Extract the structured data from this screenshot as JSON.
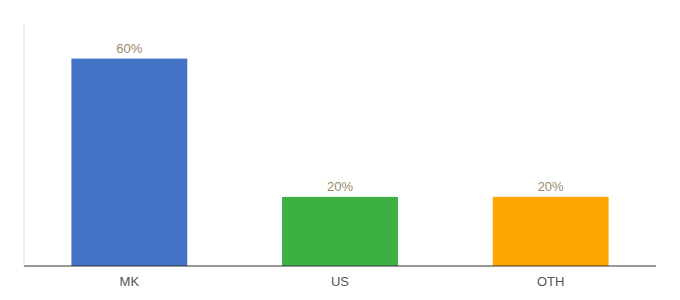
{
  "chart_data": {
    "type": "bar",
    "categories": [
      "MK",
      "US",
      "OTH"
    ],
    "values": [
      60,
      20,
      20
    ],
    "value_labels": [
      "60%",
      "20%",
      "20%"
    ],
    "colors": [
      "#4472C4",
      "#3CB043",
      "#FFA500"
    ],
    "ylim": [
      0,
      70
    ],
    "data_labels": true,
    "tick_labels": "x"
  }
}
